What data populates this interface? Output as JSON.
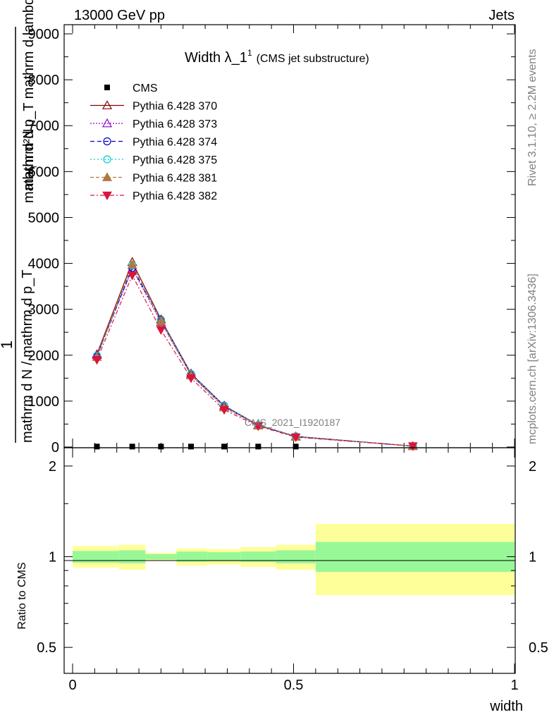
{
  "header": {
    "left": "13000 GeV pp",
    "right": "Jets"
  },
  "side": {
    "rivet": "Rivet 3.1.10, ≥ 2.2M events",
    "mcplots": "mcplots.cern.ch [arXiv:1306.3436]"
  },
  "watermark": "CMS_2021_I1920187",
  "chart_data": [
    {
      "type": "line",
      "title": "Width λ_1",
      "title_sup": "1",
      "subtitle": "(CMS jet substructure)",
      "ylabel_num": "mathrm d²N",
      "ylabel_den": "mathrm d p_T mathrm d lambda",
      "ylabel_sub": "T",
      "ylabel_pre_num": "1",
      "ylabel_pre_den": "mathrm d N / mathrm d p_T",
      "xlim": [
        0,
        1
      ],
      "ylim": [
        0,
        9200
      ],
      "yticks": [
        0,
        1000,
        2000,
        3000,
        4000,
        5000,
        6000,
        7000,
        8000,
        9000
      ],
      "ytick_labels": [
        "0",
        "1000",
        "2000",
        "3000",
        "4000",
        "5000",
        "6000",
        "7000",
        "8000",
        "9000"
      ],
      "x": [
        0.055,
        0.135,
        0.2,
        0.268,
        0.343,
        0.42,
        0.505,
        0.77
      ],
      "series": [
        {
          "name": "CMS",
          "marker": "square",
          "color": "#000000",
          "values": [
            10,
            10,
            10,
            10,
            10,
            10,
            10,
            null
          ]
        },
        {
          "name": "Pythia 6.428 370",
          "marker": "triangle-open",
          "color": "#8b0000",
          "dash": "",
          "values": [
            2020,
            4030,
            2780,
            1600,
            900,
            480,
            230,
            20
          ]
        },
        {
          "name": "Pythia 6.428 373",
          "marker": "triangle-open",
          "color": "#9400d3",
          "dash": "2,2",
          "values": [
            2000,
            3880,
            2720,
            1570,
            880,
            470,
            225,
            20
          ]
        },
        {
          "name": "Pythia 6.428 374",
          "marker": "circle-open",
          "color": "#0000cd",
          "dash": "6,4",
          "values": [
            1980,
            3900,
            2770,
            1590,
            900,
            475,
            230,
            20
          ]
        },
        {
          "name": "Pythia 6.428 375",
          "marker": "circle-open",
          "color": "#00ced1",
          "dash": "2,3",
          "values": [
            1990,
            3960,
            2760,
            1590,
            895,
            478,
            228,
            20
          ]
        },
        {
          "name": "Pythia 6.428 381",
          "marker": "triangle",
          "color": "#b07840",
          "dash": "5,3",
          "values": [
            1960,
            3970,
            2730,
            1560,
            860,
            465,
            222,
            20
          ]
        },
        {
          "name": "Pythia 6.428 382",
          "marker": "triangle-down",
          "color": "#dc143c",
          "dash": "6,3,2,3",
          "values": [
            1900,
            3740,
            2550,
            1500,
            810,
            455,
            215,
            20
          ]
        }
      ]
    },
    {
      "type": "area",
      "ylabel": "Ratio to CMS",
      "xlabel": "width",
      "xlim": [
        0,
        1
      ],
      "ylim": [
        0.41,
        2.3
      ],
      "yscale": "log",
      "xticks": [
        0,
        0.5,
        1
      ],
      "xtick_labels": [
        "0",
        "0.5",
        "1"
      ],
      "yticks": [
        0.5,
        1,
        2
      ],
      "ytick_labels": [
        "0.5",
        "1",
        "2"
      ],
      "bins": [
        {
          "x0": 0.0,
          "x1": 0.105,
          "stat_lo": 0.955,
          "stat_hi": 1.045,
          "tot_lo": 0.92,
          "tot_hi": 1.085
        },
        {
          "x0": 0.105,
          "x1": 0.165,
          "stat_lo": 0.95,
          "stat_hi": 1.05,
          "tot_lo": 0.905,
          "tot_hi": 1.095
        },
        {
          "x0": 0.165,
          "x1": 0.235,
          "stat_lo": 0.98,
          "stat_hi": 1.02,
          "tot_lo": 0.97,
          "tot_hi": 1.03
        },
        {
          "x0": 0.235,
          "x1": 0.305,
          "stat_lo": 0.962,
          "stat_hi": 1.04,
          "tot_lo": 0.935,
          "tot_hi": 1.065
        },
        {
          "x0": 0.305,
          "x1": 0.38,
          "stat_lo": 0.965,
          "stat_hi": 1.035,
          "tot_lo": 0.94,
          "tot_hi": 1.06
        },
        {
          "x0": 0.38,
          "x1": 0.46,
          "stat_lo": 0.96,
          "stat_hi": 1.04,
          "tot_lo": 0.925,
          "tot_hi": 1.075
        },
        {
          "x0": 0.46,
          "x1": 0.55,
          "stat_lo": 0.95,
          "stat_hi": 1.05,
          "tot_lo": 0.905,
          "tot_hi": 1.095
        },
        {
          "x0": 0.55,
          "x1": 1.0,
          "stat_lo": 0.89,
          "stat_hi": 1.12,
          "tot_lo": 0.745,
          "tot_hi": 1.285
        }
      ],
      "band_colors": {
        "stat": "#98f898",
        "total": "#ffff99"
      }
    }
  ]
}
